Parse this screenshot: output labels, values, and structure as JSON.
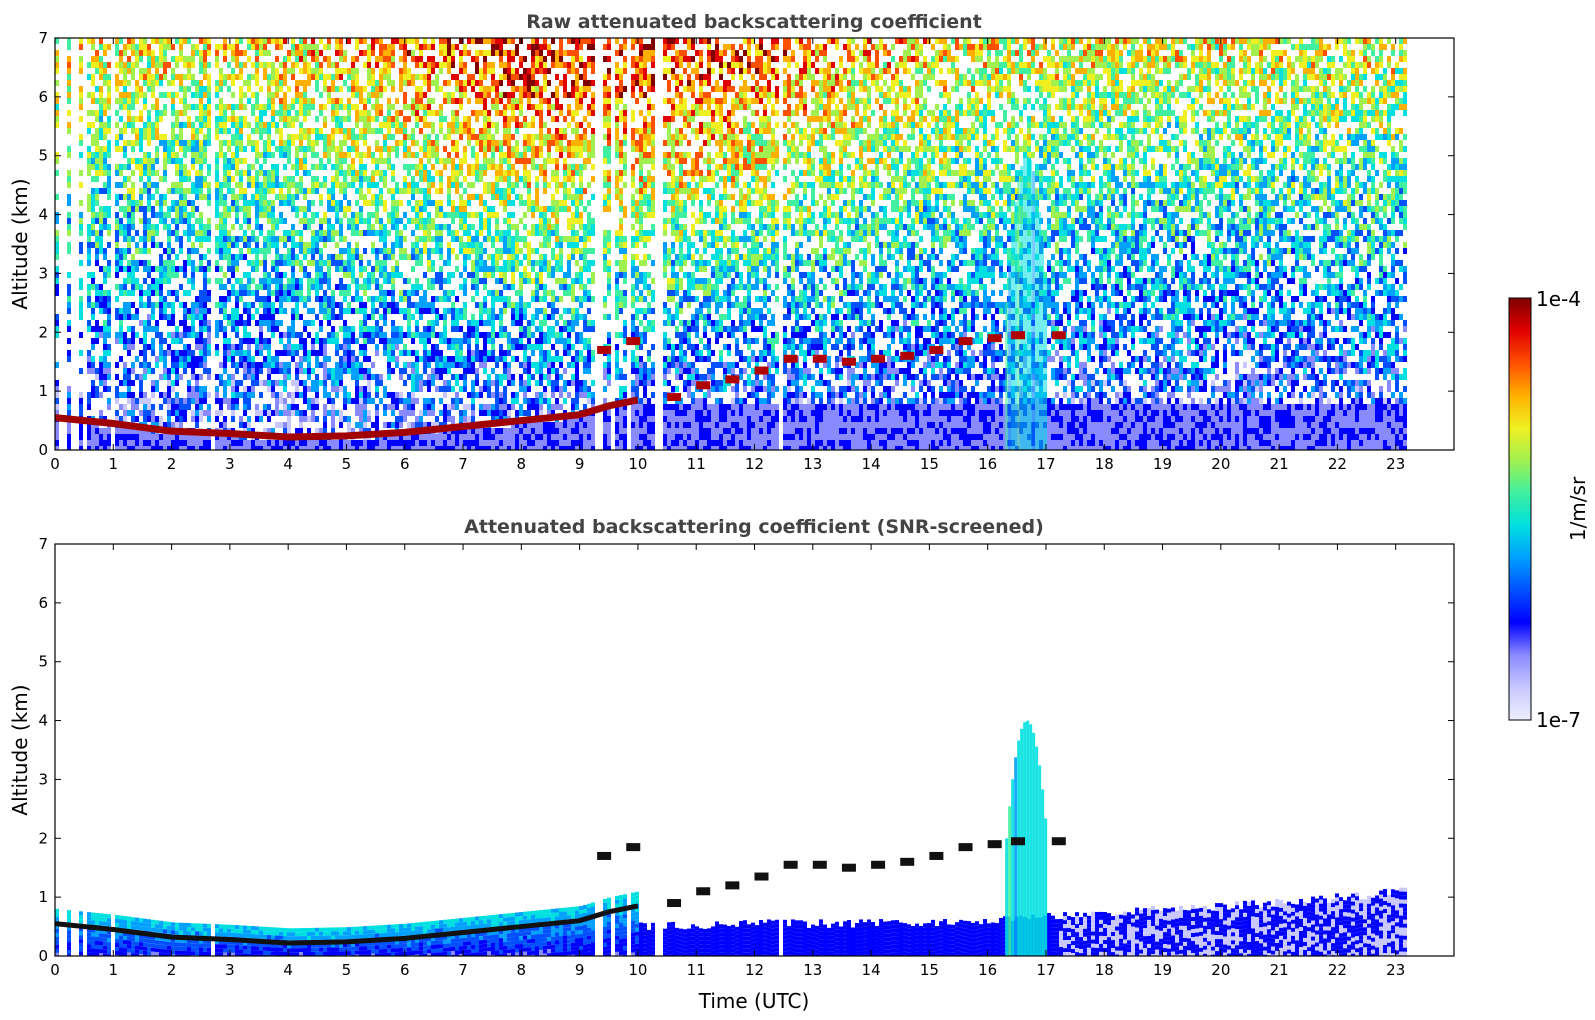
{
  "chart_data": [
    {
      "type": "heatmap",
      "title": "Raw attenuated backscattering coefficient",
      "xlabel": "",
      "ylabel": "Altitude (km)",
      "xlim": [
        0,
        24
      ],
      "ylim": [
        0,
        7
      ],
      "xticks": [
        "0",
        "1",
        "2",
        "3",
        "4",
        "5",
        "6",
        "7",
        "8",
        "9",
        "10",
        "11",
        "12",
        "13",
        "14",
        "15",
        "16",
        "17",
        "18",
        "19",
        "20",
        "21",
        "22",
        "23"
      ],
      "yticks": [
        "0",
        "1",
        "2",
        "3",
        "4",
        "5",
        "6",
        "7"
      ],
      "data_end_hour": 23.15,
      "gap_hours": [
        0.1,
        0.25,
        0.35,
        0.45,
        0.95,
        2.65,
        2.7,
        9.25,
        9.3,
        9.55,
        9.8,
        10.3,
        10.35,
        12.45
      ],
      "boundary_layer_top_km": [
        {
          "x": 0,
          "y": 0.55
        },
        {
          "x": 1,
          "y": 0.45
        },
        {
          "x": 2,
          "y": 0.32
        },
        {
          "x": 3,
          "y": 0.28
        },
        {
          "x": 4,
          "y": 0.22
        },
        {
          "x": 5,
          "y": 0.24
        },
        {
          "x": 6,
          "y": 0.3
        },
        {
          "x": 7,
          "y": 0.4
        },
        {
          "x": 8,
          "y": 0.5
        },
        {
          "x": 9,
          "y": 0.6
        },
        {
          "x": 9.5,
          "y": 0.75
        },
        {
          "x": 10,
          "y": 0.85
        }
      ],
      "elevated_layer_km": [
        {
          "x": 9.3,
          "y": 1.7
        },
        {
          "x": 9.8,
          "y": 1.85
        },
        {
          "x": 10.5,
          "y": 0.9
        },
        {
          "x": 11,
          "y": 1.1
        },
        {
          "x": 11.5,
          "y": 1.2
        },
        {
          "x": 12,
          "y": 1.35
        },
        {
          "x": 12.5,
          "y": 1.55
        },
        {
          "x": 13,
          "y": 1.55
        },
        {
          "x": 13.5,
          "y": 1.5
        },
        {
          "x": 14,
          "y": 1.55
        },
        {
          "x": 14.5,
          "y": 1.6
        },
        {
          "x": 15,
          "y": 1.7
        },
        {
          "x": 15.5,
          "y": 1.85
        },
        {
          "x": 16,
          "y": 1.9
        },
        {
          "x": 16.4,
          "y": 1.95
        },
        {
          "x": 17.1,
          "y": 1.95
        }
      ],
      "plume": {
        "x_start": 16.3,
        "x_end": 17.0,
        "top_km": 5.0
      }
    },
    {
      "type": "heatmap",
      "title": "Attenuated backscattering coefficient (SNR-screened)",
      "xlabel": "Time (UTC)",
      "ylabel": "Altitude (km)",
      "xlim": [
        0,
        24
      ],
      "ylim": [
        0,
        7
      ],
      "xticks": [
        "0",
        "1",
        "2",
        "3",
        "4",
        "5",
        "6",
        "7",
        "8",
        "9",
        "10",
        "11",
        "12",
        "13",
        "14",
        "15",
        "16",
        "17",
        "18",
        "19",
        "20",
        "21",
        "22",
        "23"
      ],
      "yticks": [
        "0",
        "1",
        "2",
        "3",
        "4",
        "5",
        "6",
        "7"
      ],
      "data_end_hour": 23.15,
      "gap_hours": [
        0.1,
        0.25,
        0.35,
        0.45,
        0.95,
        2.65,
        2.7,
        9.25,
        9.3,
        9.55,
        9.8,
        10.3,
        10.35,
        12.45
      ],
      "boundary_layer_top_km": [
        {
          "x": 0,
          "y": 0.55
        },
        {
          "x": 1,
          "y": 0.45
        },
        {
          "x": 2,
          "y": 0.32
        },
        {
          "x": 3,
          "y": 0.28
        },
        {
          "x": 4,
          "y": 0.22
        },
        {
          "x": 5,
          "y": 0.24
        },
        {
          "x": 6,
          "y": 0.3
        },
        {
          "x": 7,
          "y": 0.4
        },
        {
          "x": 8,
          "y": 0.5
        },
        {
          "x": 9,
          "y": 0.6
        },
        {
          "x": 9.5,
          "y": 0.75
        },
        {
          "x": 10,
          "y": 0.85
        }
      ],
      "elevated_layer_km": [
        {
          "x": 9.3,
          "y": 1.7
        },
        {
          "x": 9.8,
          "y": 1.85
        },
        {
          "x": 10.5,
          "y": 0.9
        },
        {
          "x": 11,
          "y": 1.1
        },
        {
          "x": 11.5,
          "y": 1.2
        },
        {
          "x": 12,
          "y": 1.35
        },
        {
          "x": 12.5,
          "y": 1.55
        },
        {
          "x": 13,
          "y": 1.55
        },
        {
          "x": 13.5,
          "y": 1.5
        },
        {
          "x": 14,
          "y": 1.55
        },
        {
          "x": 14.5,
          "y": 1.6
        },
        {
          "x": 15,
          "y": 1.7
        },
        {
          "x": 15.5,
          "y": 1.85
        },
        {
          "x": 16,
          "y": 1.9
        },
        {
          "x": 16.4,
          "y": 1.95
        },
        {
          "x": 17.1,
          "y": 1.95
        }
      ],
      "plume": {
        "x_start": 16.3,
        "x_end": 17.0,
        "top_km": 4.0
      },
      "low_signal_top_km": [
        {
          "x": 10,
          "y": 0.5
        },
        {
          "x": 12,
          "y": 0.55
        },
        {
          "x": 14,
          "y": 0.55
        },
        {
          "x": 16,
          "y": 0.6
        },
        {
          "x": 17.5,
          "y": 0.7
        },
        {
          "x": 19,
          "y": 0.8
        },
        {
          "x": 21,
          "y": 0.9
        },
        {
          "x": 23.15,
          "y": 1.1
        }
      ]
    }
  ],
  "colorbar": {
    "label": "1/m/sr",
    "max_label": "1e-4",
    "min_label": "1e-7",
    "scale": "log",
    "range": [
      1e-07,
      0.0001
    ],
    "colors": [
      "#eef0ff",
      "#c8c8ff",
      "#8a8aff",
      "#0000ff",
      "#0050ff",
      "#00a0ff",
      "#00e0e0",
      "#40f0a0",
      "#a0f050",
      "#f0f020",
      "#ffb000",
      "#ff5000",
      "#e00000",
      "#800000"
    ]
  }
}
